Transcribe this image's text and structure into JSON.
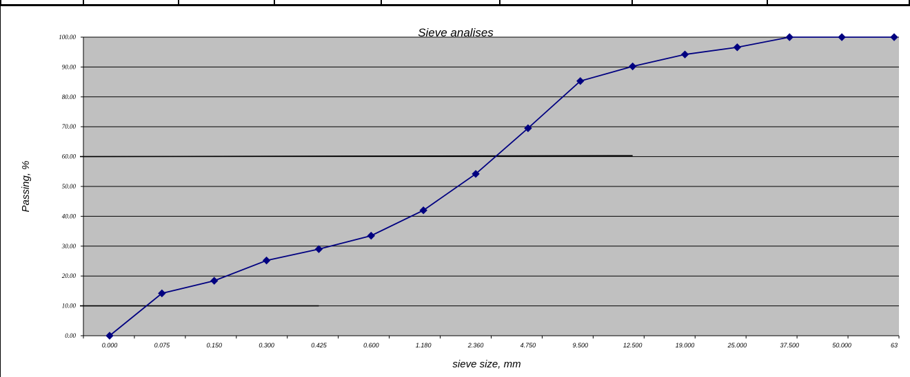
{
  "chart_data": {
    "type": "line",
    "title": "Sieve analises",
    "xlabel": "sieve size, mm",
    "ylabel": "Passing, %",
    "categories": [
      "0.000",
      "0.075",
      "0.150",
      "0.300",
      "0.425",
      "0.600",
      "1.180",
      "2.360",
      "4.750",
      "9.500",
      "12.500",
      "19.000",
      "25.000",
      "37.500",
      "50.000",
      "63"
    ],
    "series": [
      {
        "values": [
          0.0,
          14.2,
          18.4,
          25.2,
          29.0,
          33.5,
          42.0,
          54.2,
          69.5,
          85.3,
          90.2,
          94.2,
          96.6,
          100.0,
          100.0,
          100.0
        ],
        "color": "#000080",
        "marker": "diamond"
      }
    ],
    "reference_lines": [
      {
        "y_start": 60.0,
        "y_end": 60.3,
        "x_end_category_position": 10.0
      },
      {
        "y_start": 10.0,
        "y_end": 10.0,
        "x_end_category_position": 4.0
      }
    ],
    "y_ticks": [
      "0.00",
      "10.00",
      "20.00",
      "30.00",
      "40.00",
      "50.00",
      "60.00",
      "70.00",
      "80.00",
      "90.00",
      "100.00"
    ],
    "ylim": [
      0,
      100
    ],
    "grid": true,
    "plot_background": "#c0c0c0",
    "legend": "none"
  }
}
